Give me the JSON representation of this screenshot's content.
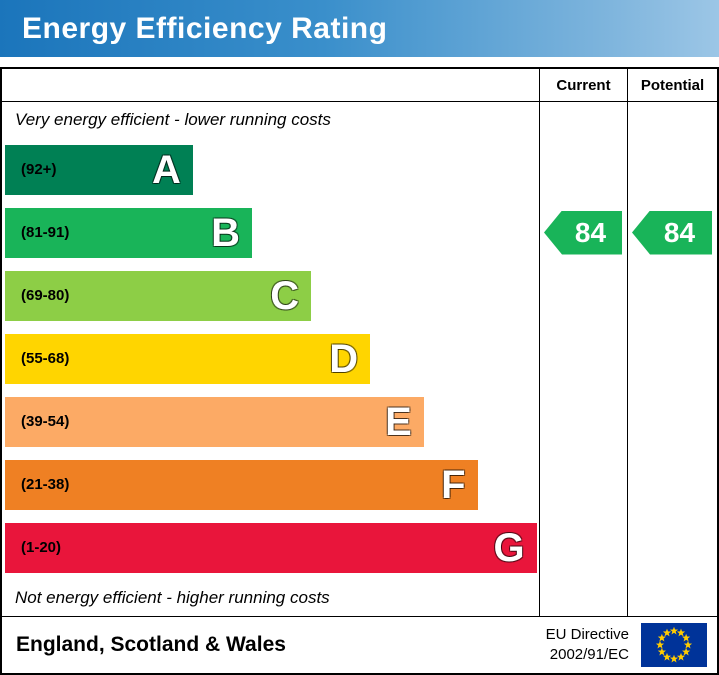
{
  "title": "Energy Efficiency Rating",
  "chart": {
    "columns": {
      "current": "Current",
      "potential": "Potential"
    },
    "top_note": "Very energy efficient - lower running costs",
    "bottom_note": "Not energy efficient - higher running costs",
    "bands": [
      {
        "letter": "A",
        "range": "(92+)",
        "color": "#008054",
        "width_pct": 35
      },
      {
        "letter": "B",
        "range": "(81-91)",
        "color": "#19b459",
        "width_pct": 46
      },
      {
        "letter": "C",
        "range": "(69-80)",
        "color": "#8dce46",
        "width_pct": 57
      },
      {
        "letter": "D",
        "range": "(55-68)",
        "color": "#ffd500",
        "width_pct": 68
      },
      {
        "letter": "E",
        "range": "(39-54)",
        "color": "#fcaa65",
        "width_pct": 78
      },
      {
        "letter": "F",
        "range": "(21-38)",
        "color": "#ef8023",
        "width_pct": 88
      },
      {
        "letter": "G",
        "range": "(1-20)",
        "color": "#e9153b",
        "width_pct": 99
      }
    ],
    "current": {
      "value": "84",
      "band": "B",
      "color": "#19b459"
    },
    "potential": {
      "value": "84",
      "band": "B",
      "color": "#19b459"
    }
  },
  "footer": {
    "region": "England, Scotland & Wales",
    "directive_line1": "EU Directive",
    "directive_line2": "2002/91/EC",
    "flag_blue": "#003399",
    "flag_gold": "#ffcc00"
  },
  "chart_data": {
    "type": "bar",
    "title": "Energy Efficiency Rating",
    "categories": [
      "A",
      "B",
      "C",
      "D",
      "E",
      "F",
      "G"
    ],
    "band_ranges": [
      "(92+)",
      "(81-91)",
      "(69-80)",
      "(55-68)",
      "(39-54)",
      "(21-38)",
      "(1-20)"
    ],
    "band_colors": [
      "#008054",
      "#19b459",
      "#8dce46",
      "#ffd500",
      "#fcaa65",
      "#ef8023",
      "#e9153b"
    ],
    "bar_widths_pct": [
      35,
      46,
      57,
      68,
      78,
      88,
      99
    ],
    "ratings": [
      {
        "name": "Current",
        "value": 84,
        "band": "B"
      },
      {
        "name": "Potential",
        "value": 84,
        "band": "B"
      }
    ],
    "top_annotation": "Very energy efficient - lower running costs",
    "bottom_annotation": "Not energy efficient - higher running costs",
    "footer_region": "England, Scotland & Wales",
    "footer_directive": "EU Directive 2002/91/EC",
    "legend_position": "none",
    "grid": false
  }
}
